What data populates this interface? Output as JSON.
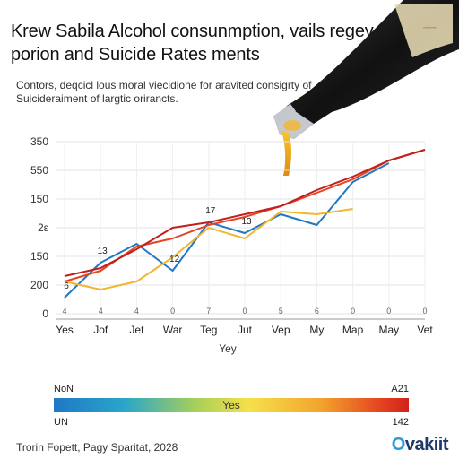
{
  "title": "Krew Sabila Alcohol consunmption, vails regey porion and Suicide Rates ments",
  "subtitle": "Contors, deqcicl lous moral viecidione for aravited consigrty of Suicideraiment of largtic orirancts.",
  "chart_data": {
    "type": "line",
    "categories": [
      "Yes",
      "Jof",
      "Jet",
      "War",
      "Teg",
      "Jut",
      "Vep",
      "My",
      "Map",
      "May",
      "Vet"
    ],
    "category_sublabels": [
      "4",
      "4",
      "4",
      "0",
      "7",
      "0",
      "5",
      "6",
      "0",
      "0",
      "0"
    ],
    "y_ticks": [
      "0",
      "200",
      "150",
      "2ε",
      "150",
      "550",
      "350"
    ],
    "xlabel": "Yey",
    "ylabel": "",
    "grid": true,
    "point_labels": [
      {
        "text": "6",
        "series": "blue",
        "index": 0
      },
      {
        "text": "13",
        "series": "blue",
        "index": 1
      },
      {
        "text": "12",
        "series": "blue",
        "index": 3
      },
      {
        "text": "17",
        "series": "blue",
        "index": 4
      },
      {
        "text": "13",
        "series": "blue",
        "index": 5
      }
    ],
    "series": [
      {
        "name": "",
        "color": "#1f78c4",
        "values": [
          30,
          95,
          130,
          80,
          170,
          150,
          185,
          165,
          245,
          280,
          null
        ]
      },
      {
        "name": "",
        "color": "#f2b630",
        "values": [
          60,
          45,
          60,
          105,
          160,
          140,
          190,
          185,
          195,
          null,
          null
        ]
      },
      {
        "name": "",
        "color": "#e44420",
        "values": [
          60,
          80,
          125,
          140,
          165,
          180,
          200,
          225,
          250,
          285,
          305
        ]
      },
      {
        "name": "",
        "color": "#c0201e",
        "values": [
          70,
          85,
          120,
          160,
          170,
          185,
          200,
          230,
          255,
          285,
          305
        ]
      }
    ],
    "color_scale": {
      "left_top": "NoN",
      "right_top": "A21",
      "center": "Yes",
      "left_bottom": "UN",
      "right_bottom": "142"
    }
  },
  "footer": "Trorin Fopett, Pagy Sparitat, 2028",
  "logo": {
    "o": "O",
    "rest": "vakiit"
  }
}
